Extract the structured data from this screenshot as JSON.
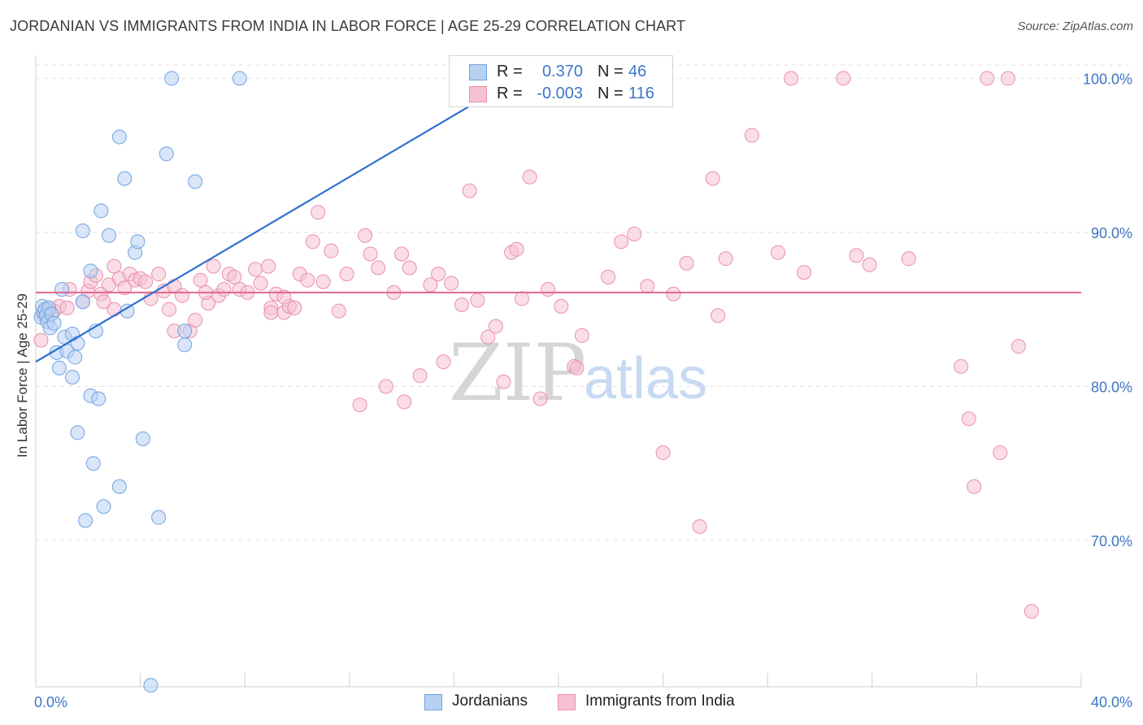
{
  "title": "JORDANIAN VS IMMIGRANTS FROM INDIA IN LABOR FORCE | AGE 25-29 CORRELATION CHART",
  "source": "Source: ZipAtlas.com",
  "watermark": {
    "zip": "ZIP",
    "atlas": "atlas"
  },
  "colors": {
    "jordanians": "#6fa2e0",
    "jordanians_fill": "#b8d1f3",
    "jordanians_line": "#2d6fcf",
    "india": "#e990ac",
    "india_fill": "#f6c1d1",
    "india_line": "#e0668e",
    "axis_text": "#3d76c6",
    "grid": "#e2e2e2"
  },
  "stats": {
    "jordanians": {
      "r_label": "R =",
      "r_value": "0.370",
      "n_label": "N =",
      "n_value": "46"
    },
    "india": {
      "r_label": "R =",
      "r_value": "-0.003",
      "n_label": "N =",
      "n_value": "116"
    }
  },
  "chart_data": {
    "type": "scatter",
    "xlabel": "",
    "ylabel": "In Labor Force | Age 25-29",
    "xlim": [
      0,
      40
    ],
    "ylim": [
      60.5,
      101.5
    ],
    "x_tick_labels": [
      "0.0%",
      "40.0%"
    ],
    "y_ticks": [
      70,
      80,
      90,
      100
    ],
    "y_tick_labels": [
      "70.0%",
      "80.0%",
      "90.0%",
      "100.0%"
    ],
    "legend": [
      "Jordanians",
      "Immigrants from India"
    ],
    "grid": true,
    "series": [
      {
        "name": "Jordanians",
        "trend": {
          "x": [
            0,
            18.4
          ],
          "y": [
            81.6,
            100.0
          ]
        },
        "points": [
          [
            0.2,
            84.5
          ],
          [
            0.25,
            85.2
          ],
          [
            0.3,
            84.8
          ],
          [
            0.35,
            85.0
          ],
          [
            0.4,
            84.6
          ],
          [
            0.45,
            84.2
          ],
          [
            0.5,
            85.1
          ],
          [
            0.55,
            83.8
          ],
          [
            0.6,
            84.7
          ],
          [
            0.7,
            84.1
          ],
          [
            0.8,
            82.2
          ],
          [
            0.9,
            81.2
          ],
          [
            1.0,
            86.3
          ],
          [
            1.1,
            83.2
          ],
          [
            1.2,
            82.3
          ],
          [
            1.4,
            80.6
          ],
          [
            1.4,
            83.4
          ],
          [
            1.5,
            81.9
          ],
          [
            1.6,
            82.8
          ],
          [
            1.6,
            77.0
          ],
          [
            1.8,
            85.5
          ],
          [
            1.8,
            90.1
          ],
          [
            1.9,
            71.3
          ],
          [
            2.1,
            87.5
          ],
          [
            2.1,
            79.4
          ],
          [
            2.2,
            75.0
          ],
          [
            2.3,
            83.6
          ],
          [
            2.4,
            79.2
          ],
          [
            2.5,
            91.4
          ],
          [
            2.6,
            72.2
          ],
          [
            2.8,
            89.8
          ],
          [
            3.2,
            96.2
          ],
          [
            3.2,
            73.5
          ],
          [
            3.4,
            93.5
          ],
          [
            3.5,
            84.9
          ],
          [
            3.8,
            88.7
          ],
          [
            3.9,
            89.4
          ],
          [
            4.1,
            76.6
          ],
          [
            4.4,
            60.6
          ],
          [
            4.7,
            71.5
          ],
          [
            5.0,
            95.1
          ],
          [
            5.2,
            100.0
          ],
          [
            5.7,
            83.6
          ],
          [
            5.7,
            82.7
          ],
          [
            6.1,
            93.3
          ],
          [
            7.8,
            100.0
          ]
        ]
      },
      {
        "name": "Immigrants from India",
        "trend": {
          "x": [
            0,
            40
          ],
          "y": [
            86.1,
            86.1
          ]
        },
        "points": [
          [
            0.2,
            83.0
          ],
          [
            0.3,
            84.6
          ],
          [
            0.5,
            85.0
          ],
          [
            0.7,
            84.9
          ],
          [
            0.9,
            85.2
          ],
          [
            1.2,
            85.1
          ],
          [
            1.3,
            86.3
          ],
          [
            1.8,
            85.5
          ],
          [
            2.0,
            86.2
          ],
          [
            2.1,
            86.8
          ],
          [
            2.3,
            87.2
          ],
          [
            2.5,
            86.0
          ],
          [
            2.6,
            85.5
          ],
          [
            2.8,
            86.6
          ],
          [
            3.0,
            87.8
          ],
          [
            3.2,
            87.0
          ],
          [
            3.4,
            86.4
          ],
          [
            3.6,
            87.3
          ],
          [
            3.8,
            86.9
          ],
          [
            4.0,
            87.0
          ],
          [
            4.2,
            86.8
          ],
          [
            4.4,
            85.7
          ],
          [
            4.7,
            87.3
          ],
          [
            4.9,
            86.2
          ],
          [
            5.1,
            85.0
          ],
          [
            5.3,
            86.5
          ],
          [
            5.6,
            85.9
          ],
          [
            5.9,
            83.6
          ],
          [
            6.1,
            84.3
          ],
          [
            6.3,
            86.9
          ],
          [
            6.6,
            85.4
          ],
          [
            6.8,
            87.8
          ],
          [
            7.0,
            85.9
          ],
          [
            7.2,
            86.3
          ],
          [
            7.4,
            87.3
          ],
          [
            7.6,
            87.1
          ],
          [
            7.8,
            86.3
          ],
          [
            8.1,
            86.1
          ],
          [
            8.4,
            87.6
          ],
          [
            8.6,
            86.7
          ],
          [
            8.9,
            87.8
          ],
          [
            9.0,
            85.1
          ],
          [
            9.2,
            86.0
          ],
          [
            9.5,
            84.8
          ],
          [
            9.7,
            85.2
          ],
          [
            9.9,
            85.1
          ],
          [
            10.1,
            87.3
          ],
          [
            10.4,
            86.9
          ],
          [
            10.6,
            89.4
          ],
          [
            10.8,
            91.3
          ],
          [
            11.0,
            86.8
          ],
          [
            11.3,
            88.8
          ],
          [
            11.6,
            84.9
          ],
          [
            11.9,
            87.3
          ],
          [
            12.4,
            78.8
          ],
          [
            12.6,
            89.8
          ],
          [
            12.8,
            88.6
          ],
          [
            13.1,
            87.7
          ],
          [
            13.4,
            80.0
          ],
          [
            13.7,
            86.1
          ],
          [
            14.0,
            88.6
          ],
          [
            14.3,
            87.7
          ],
          [
            14.7,
            80.7
          ],
          [
            15.1,
            86.6
          ],
          [
            15.4,
            87.3
          ],
          [
            15.6,
            81.6
          ],
          [
            15.9,
            86.7
          ],
          [
            16.3,
            85.3
          ],
          [
            16.6,
            92.7
          ],
          [
            16.9,
            85.6
          ],
          [
            17.3,
            83.2
          ],
          [
            17.6,
            83.9
          ],
          [
            17.9,
            80.3
          ],
          [
            18.2,
            88.7
          ],
          [
            18.4,
            88.9
          ],
          [
            18.6,
            85.7
          ],
          [
            18.9,
            93.6
          ],
          [
            19.3,
            79.2
          ],
          [
            19.6,
            86.3
          ],
          [
            20.1,
            85.2
          ],
          [
            20.6,
            81.3
          ],
          [
            20.9,
            83.3
          ],
          [
            21.9,
            87.1
          ],
          [
            22.4,
            89.4
          ],
          [
            22.9,
            89.9
          ],
          [
            23.4,
            86.5
          ],
          [
            24.0,
            75.7
          ],
          [
            24.4,
            86.0
          ],
          [
            24.9,
            88.0
          ],
          [
            25.4,
            70.9
          ],
          [
            25.9,
            93.5
          ],
          [
            26.1,
            84.6
          ],
          [
            26.4,
            88.3
          ],
          [
            27.4,
            96.3
          ],
          [
            28.4,
            88.7
          ],
          [
            28.9,
            100.0
          ],
          [
            29.4,
            87.4
          ],
          [
            30.9,
            100.0
          ],
          [
            31.4,
            88.5
          ],
          [
            31.9,
            87.9
          ],
          [
            33.4,
            88.3
          ],
          [
            35.4,
            81.3
          ],
          [
            35.7,
            77.9
          ],
          [
            35.9,
            73.5
          ],
          [
            36.4,
            100.0
          ],
          [
            36.9,
            75.7
          ],
          [
            37.2,
            100.0
          ],
          [
            37.6,
            82.6
          ],
          [
            38.1,
            65.4
          ],
          [
            3.0,
            85.0
          ],
          [
            5.3,
            83.6
          ],
          [
            9.0,
            84.8
          ],
          [
            14.1,
            79.0
          ],
          [
            20.7,
            81.2
          ],
          [
            6.5,
            86.1
          ],
          [
            9.5,
            85.8
          ]
        ]
      }
    ]
  }
}
